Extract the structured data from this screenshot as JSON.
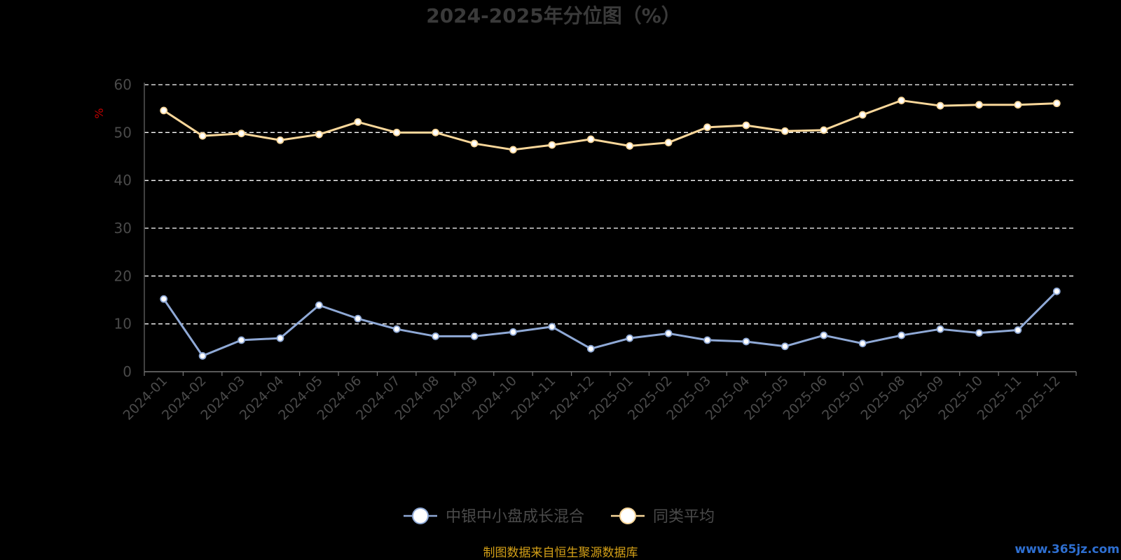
{
  "chart_data": {
    "type": "line",
    "title": "2024-2025年分位图（%）",
    "ylabel": "%",
    "xlabel": "",
    "ylim": [
      0,
      60
    ],
    "yticks": [
      0,
      10,
      20,
      30,
      40,
      50,
      60
    ],
    "grid": true,
    "legend_position": "bottom",
    "categories": [
      "2024-01",
      "2024-02",
      "2024-03",
      "2024-04",
      "2024-05",
      "2024-06",
      "2024-07",
      "2024-08",
      "2024-09",
      "2024-10",
      "2024-11",
      "2024-12",
      "2025-01",
      "2025-02",
      "2025-03",
      "2025-04",
      "2025-05",
      "2025-06",
      "2025-07",
      "2025-08",
      "2025-09",
      "2025-10",
      "2025-11",
      "2025-12"
    ],
    "series": [
      {
        "name": "中银中小盘成长混合",
        "color": "#8fa9d6",
        "values": [
          15.2,
          3.3,
          6.6,
          7.0,
          13.9,
          11.1,
          8.9,
          7.4,
          7.4,
          8.3,
          9.4,
          4.8,
          7.0,
          8.0,
          6.6,
          6.3,
          5.3,
          7.6,
          5.9,
          7.6,
          8.9,
          8.1,
          8.7,
          16.8
        ]
      },
      {
        "name": "同类平均",
        "color": "#f9d79a",
        "values": [
          54.6,
          49.3,
          49.8,
          48.4,
          49.6,
          52.2,
          50.0,
          50.0,
          47.7,
          46.4,
          47.4,
          48.6,
          47.2,
          47.9,
          51.1,
          51.5,
          50.3,
          50.5,
          53.7,
          56.7,
          55.6,
          55.8,
          55.8,
          56.1
        ]
      }
    ]
  },
  "source": "制图数据来自恒生聚源数据库",
  "watermark": "www.365jz.com"
}
